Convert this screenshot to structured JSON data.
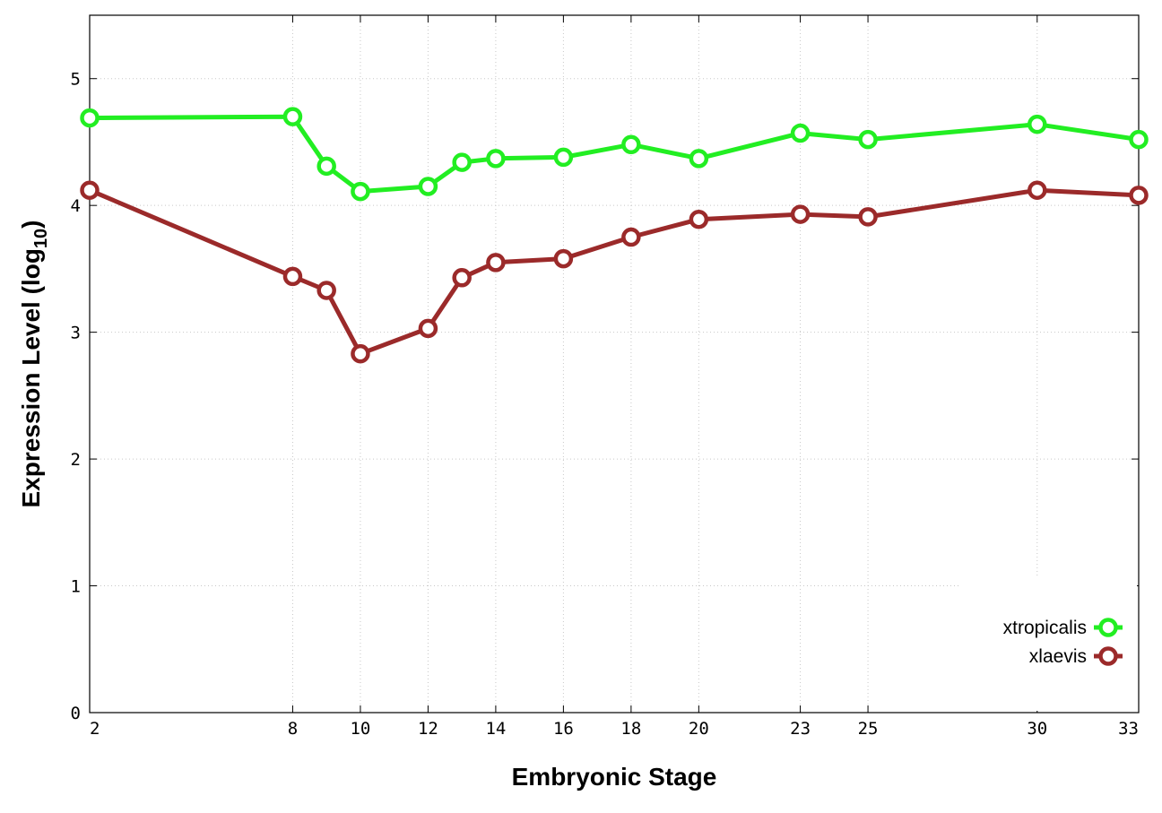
{
  "chart_data": {
    "type": "line",
    "xlabel": "Embryonic Stage",
    "ylabel_main": "Expression Level (log",
    "ylabel_sub": "10",
    "ylabel_close": ")",
    "x": [
      2,
      8,
      9,
      10,
      12,
      13,
      14,
      16,
      18,
      20,
      23,
      25,
      30,
      33
    ],
    "x_ticks": [
      2,
      8,
      10,
      12,
      14,
      16,
      18,
      20,
      23,
      25,
      30,
      33
    ],
    "xlim": [
      2,
      33
    ],
    "y_ticks": [
      0,
      1,
      2,
      3,
      4,
      5
    ],
    "ylim": [
      0,
      5.5
    ],
    "grid": true,
    "legend_position": "bottom-right",
    "series": [
      {
        "name": "xtropicalis",
        "color": "#22ee22",
        "values": [
          4.69,
          4.7,
          4.31,
          4.11,
          4.15,
          4.34,
          4.37,
          4.38,
          4.48,
          4.37,
          4.57,
          4.52,
          4.64,
          4.52
        ]
      },
      {
        "name": "xlaevis",
        "color": "#9b2a2a",
        "values": [
          4.12,
          3.44,
          3.33,
          2.83,
          3.03,
          3.43,
          3.55,
          3.58,
          3.75,
          3.89,
          3.93,
          3.91,
          4.12,
          4.08
        ]
      }
    ]
  }
}
